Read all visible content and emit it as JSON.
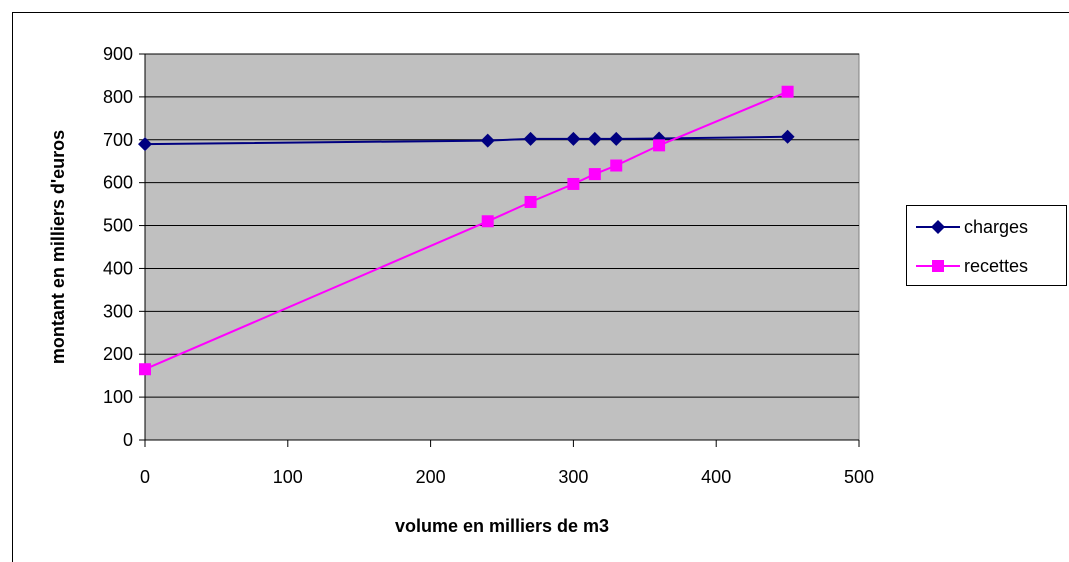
{
  "chart_data": {
    "type": "line",
    "xlabel": "volume en milliers de m3",
    "ylabel": "montant en milliers d'euros",
    "xlim": [
      0,
      500
    ],
    "ylim": [
      0,
      900
    ],
    "xticks": [
      "0",
      "100",
      "200",
      "300",
      "400",
      "500"
    ],
    "yticks": [
      "0",
      "100",
      "200",
      "300",
      "400",
      "500",
      "600",
      "700",
      "800",
      "900"
    ],
    "grid": "horizontal",
    "legend_position": "right",
    "plot_background": "#c0c0c0",
    "series": [
      {
        "name": "charges",
        "color": "#000080",
        "marker": "diamond",
        "x": [
          0,
          240,
          270,
          300,
          315,
          330,
          360,
          450
        ],
        "y": [
          690,
          698,
          702,
          702,
          702,
          702,
          703,
          707
        ]
      },
      {
        "name": "recettes",
        "color": "#ff00ff",
        "marker": "square",
        "x": [
          0,
          240,
          270,
          300,
          315,
          330,
          360,
          450
        ],
        "y": [
          165,
          510,
          555,
          597,
          620,
          640,
          687,
          812
        ]
      }
    ]
  }
}
